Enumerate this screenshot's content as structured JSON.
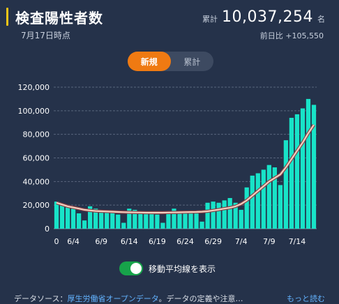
{
  "header": {
    "title": "検査陽性者数",
    "date": "7月17日時点",
    "total_label": "累計",
    "total_value": "10,037,254",
    "total_unit": "名",
    "diff_label": "前日比",
    "diff_value": "+105,550"
  },
  "tabs": [
    {
      "label": "新規",
      "active": true
    },
    {
      "label": "累計",
      "active": false
    }
  ],
  "toggle": {
    "label": "移動平均線を表示",
    "on": true
  },
  "footer": {
    "prefix": "データソース：",
    "source_link": "厚生労働省オープンデータ",
    "middle": "。データの定義や注意…",
    "more": "もっと読む"
  },
  "colors": {
    "bar": "#18e3c8",
    "average_line": "#f0d0c0",
    "accent": "#f5c518",
    "active_tab": "#ef7a12",
    "toggle_on": "#17a34a",
    "link": "#63b3ff"
  },
  "chart_data": {
    "type": "bar",
    "x_tick_labels": [
      "0",
      "6/4",
      "6/9",
      "6/14",
      "6/19",
      "6/24",
      "6/29",
      "7/4",
      "7/9",
      "7/14"
    ],
    "y_tick_labels": [
      "0",
      "20,000",
      "40,000",
      "60,000",
      "80,000",
      "100,000",
      "120,000"
    ],
    "ylim": [
      0,
      120000
    ],
    "grid": true,
    "series": [
      {
        "values": [
          23000,
          20000,
          18000,
          17000,
          13000,
          7000,
          19000,
          17000,
          15000,
          14000,
          15000,
          12000,
          5000,
          17000,
          16000,
          14000,
          13000,
          14000,
          12000,
          5000,
          14000,
          17000,
          15000,
          14000,
          15000,
          13000,
          6000,
          22000,
          23000,
          22000,
          24000,
          26000,
          22000,
          16000,
          35000,
          45000,
          47000,
          50000,
          54000,
          52000,
          37000,
          75000,
          94000,
          97000,
          102000,
          110000,
          105000
        ]
      },
      {
        "values": [
          22000,
          20500,
          19000,
          18000,
          17000,
          16000,
          15500,
          15000,
          14800,
          14600,
          14400,
          14200,
          14000,
          13900,
          13800,
          13700,
          13600,
          13600,
          13600,
          13600,
          13700,
          13800,
          13900,
          14000,
          14100,
          14200,
          14400,
          14800,
          15500,
          16200,
          17000,
          17800,
          19000,
          21000,
          24000,
          28000,
          32000,
          36000,
          40000,
          43000,
          46000,
          52000,
          59000,
          66000,
          73000,
          81000,
          88000
        ]
      }
    ]
  }
}
